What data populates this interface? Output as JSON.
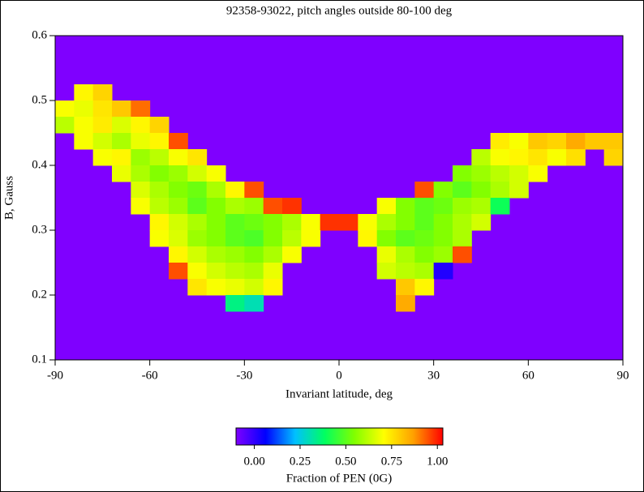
{
  "chart_data": {
    "type": "heatmap",
    "title": "92358-93022, pitch angles outside 80-100 deg",
    "x_label": "Invariant latitude, deg",
    "y_label": "B, Gauss",
    "xlim": [
      -90,
      90
    ],
    "ylim": [
      0.1,
      0.6
    ],
    "xticks": [
      -90,
      -60,
      -30,
      0,
      30,
      60,
      90
    ],
    "yticks": [
      0.1,
      0.2,
      0.3,
      0.4,
      0.5,
      0.6
    ],
    "x_edges": [
      -90,
      -84,
      -78,
      -72,
      -66,
      -60,
      -54,
      -48,
      -42,
      -36,
      -30,
      -24,
      -18,
      -12,
      -6,
      0,
      6,
      12,
      18,
      24,
      30,
      36,
      42,
      48,
      54,
      60,
      66,
      72,
      78,
      84,
      90
    ],
    "y_edges": [
      0.6,
      0.575,
      0.55,
      0.525,
      0.5,
      0.475,
      0.45,
      0.425,
      0.4,
      0.375,
      0.35,
      0.325,
      0.3,
      0.275,
      0.25,
      0.225,
      0.2,
      0.175,
      0.15,
      0.125,
      0.1
    ],
    "background_color": "#7f00ff",
    "colormap": [
      "#7f00ff",
      "#0000ff",
      "#00c0ff",
      "#00ff60",
      "#80ff00",
      "#ffff00",
      "#ffa000",
      "#ff0000"
    ],
    "colorbar": {
      "label": "Fraction of PEN (0G)",
      "zlim": [
        -0.1,
        1.03
      ],
      "ticks": [
        {
          "value": 0,
          "label": "0.00"
        },
        {
          "value": 0.25,
          "label": "0.25"
        },
        {
          "value": 0.5,
          "label": "0.50"
        },
        {
          "value": 0.75,
          "label": "0.75"
        },
        {
          "value": 1,
          "label": "1.00"
        }
      ]
    },
    "z": [
      [
        null,
        null,
        null,
        null,
        null,
        null,
        null,
        null,
        null,
        null,
        null,
        null,
        null,
        null,
        null,
        null,
        null,
        null,
        null,
        null,
        null,
        null,
        null,
        null,
        null,
        null,
        null,
        null,
        null,
        null
      ],
      [
        null,
        null,
        null,
        null,
        null,
        null,
        null,
        null,
        null,
        null,
        null,
        null,
        null,
        null,
        null,
        null,
        null,
        null,
        null,
        null,
        null,
        null,
        null,
        null,
        null,
        null,
        null,
        null,
        null,
        null
      ],
      [
        null,
        null,
        null,
        null,
        null,
        null,
        null,
        null,
        null,
        null,
        null,
        null,
        null,
        null,
        null,
        null,
        null,
        null,
        null,
        null,
        null,
        null,
        null,
        null,
        null,
        null,
        null,
        null,
        null,
        null
      ],
      [
        null,
        0.72,
        0.78,
        null,
        null,
        null,
        null,
        null,
        null,
        null,
        null,
        null,
        null,
        null,
        null,
        null,
        null,
        null,
        null,
        null,
        null,
        null,
        null,
        null,
        null,
        null,
        null,
        null,
        null,
        null
      ],
      [
        0.7,
        0.68,
        0.75,
        0.8,
        0.92,
        null,
        null,
        null,
        null,
        null,
        null,
        null,
        null,
        null,
        null,
        null,
        null,
        null,
        null,
        null,
        null,
        null,
        null,
        null,
        null,
        null,
        null,
        null,
        null,
        null
      ],
      [
        0.62,
        0.7,
        0.74,
        0.66,
        0.72,
        0.78,
        null,
        null,
        null,
        null,
        null,
        null,
        null,
        null,
        null,
        null,
        null,
        null,
        null,
        null,
        null,
        null,
        null,
        null,
        null,
        null,
        null,
        null,
        null,
        null
      ],
      [
        null,
        0.7,
        0.65,
        0.6,
        0.68,
        0.72,
        0.95,
        null,
        null,
        null,
        null,
        null,
        null,
        null,
        null,
        null,
        null,
        null,
        null,
        null,
        null,
        null,
        null,
        0.74,
        0.7,
        0.8,
        0.78,
        0.85,
        0.8,
        0.8
      ],
      [
        null,
        null,
        0.7,
        0.72,
        0.58,
        0.62,
        0.7,
        0.75,
        null,
        null,
        null,
        null,
        null,
        null,
        null,
        null,
        null,
        null,
        null,
        null,
        null,
        null,
        0.62,
        0.7,
        0.72,
        0.75,
        0.7,
        0.76,
        null,
        0.78
      ],
      [
        null,
        null,
        null,
        0.68,
        0.6,
        0.55,
        0.58,
        0.65,
        0.7,
        null,
        null,
        null,
        null,
        null,
        null,
        null,
        null,
        null,
        null,
        null,
        null,
        0.55,
        0.58,
        0.62,
        0.65,
        0.7,
        null,
        null,
        null,
        null
      ],
      [
        null,
        null,
        null,
        null,
        0.66,
        0.6,
        0.55,
        0.52,
        0.6,
        0.72,
        0.95,
        null,
        null,
        null,
        null,
        null,
        null,
        null,
        null,
        0.95,
        0.55,
        0.5,
        0.55,
        0.6,
        0.65,
        null,
        null,
        null,
        null,
        null
      ],
      [
        null,
        null,
        null,
        null,
        0.7,
        0.62,
        0.58,
        0.5,
        0.55,
        0.6,
        0.58,
        0.95,
        0.98,
        null,
        null,
        null,
        null,
        0.7,
        0.55,
        0.5,
        0.52,
        0.58,
        0.6,
        0.4,
        null,
        null,
        null,
        null,
        null,
        null
      ],
      [
        null,
        null,
        null,
        null,
        null,
        0.72,
        0.65,
        0.6,
        0.55,
        0.5,
        0.52,
        0.55,
        0.6,
        0.7,
        0.98,
        0.98,
        0.7,
        0.6,
        0.55,
        0.5,
        0.55,
        0.6,
        0.65,
        null,
        null,
        null,
        null,
        null,
        null,
        null
      ],
      [
        null,
        null,
        null,
        null,
        null,
        0.7,
        0.66,
        0.58,
        0.55,
        0.5,
        0.48,
        0.55,
        0.62,
        0.7,
        null,
        null,
        0.72,
        0.55,
        0.5,
        0.52,
        0.55,
        0.6,
        null,
        null,
        null,
        null,
        null,
        null,
        null,
        null
      ],
      [
        null,
        null,
        null,
        null,
        null,
        null,
        0.72,
        0.65,
        0.6,
        0.58,
        0.55,
        0.6,
        0.7,
        null,
        null,
        null,
        null,
        0.68,
        0.6,
        0.55,
        0.58,
        0.95,
        null,
        null,
        null,
        null,
        null,
        null,
        null,
        null
      ],
      [
        null,
        null,
        null,
        null,
        null,
        null,
        0.95,
        0.7,
        0.65,
        0.62,
        0.6,
        0.68,
        null,
        null,
        null,
        null,
        null,
        0.65,
        0.62,
        0.6,
        0.02,
        null,
        null,
        null,
        null,
        null,
        null,
        null,
        null,
        null
      ],
      [
        null,
        null,
        null,
        null,
        null,
        null,
        null,
        0.75,
        0.7,
        0.68,
        0.65,
        0.72,
        null,
        null,
        null,
        null,
        null,
        null,
        0.8,
        0.72,
        null,
        null,
        null,
        null,
        null,
        null,
        null,
        null,
        null,
        null
      ],
      [
        null,
        null,
        null,
        null,
        null,
        null,
        null,
        null,
        null,
        0.35,
        0.3,
        null,
        null,
        null,
        null,
        null,
        null,
        null,
        0.85,
        null,
        null,
        null,
        null,
        null,
        null,
        null,
        null,
        null,
        null,
        null
      ],
      [
        null,
        null,
        null,
        null,
        null,
        null,
        null,
        null,
        null,
        null,
        null,
        null,
        null,
        null,
        null,
        null,
        null,
        null,
        null,
        null,
        null,
        null,
        null,
        null,
        null,
        null,
        null,
        null,
        null,
        null
      ],
      [
        null,
        null,
        null,
        null,
        null,
        null,
        null,
        null,
        null,
        null,
        null,
        null,
        null,
        null,
        null,
        null,
        null,
        null,
        null,
        null,
        null,
        null,
        null,
        null,
        null,
        null,
        null,
        null,
        null,
        null
      ],
      [
        null,
        null,
        null,
        null,
        null,
        null,
        null,
        null,
        null,
        null,
        null,
        null,
        null,
        null,
        null,
        null,
        null,
        null,
        null,
        null,
        null,
        null,
        null,
        null,
        null,
        null,
        null,
        null,
        null,
        null
      ]
    ]
  }
}
